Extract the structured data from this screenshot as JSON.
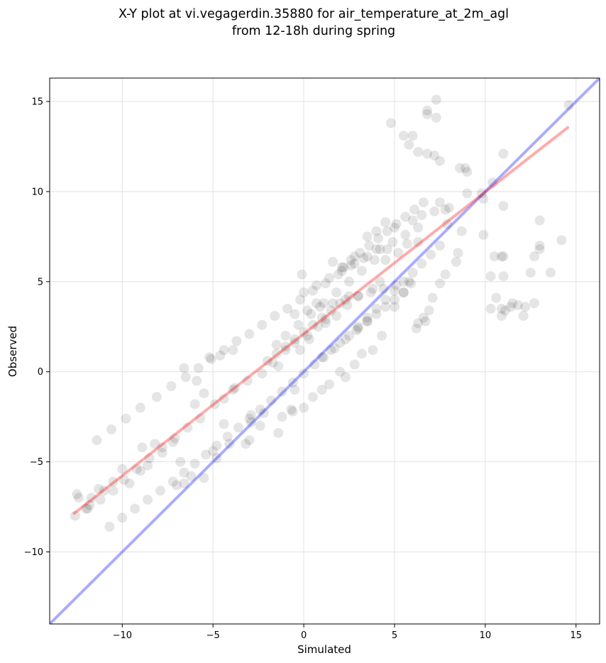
{
  "chart_data": {
    "type": "scatter",
    "title": "X-Y plot at vi.vegagerdin.35880 for air_temperature_at_2m_agl",
    "subtitle": "from 12-18h during spring",
    "xlabel": "Simulated",
    "ylabel": "Observed",
    "xlim": [
      -14.0,
      16.3
    ],
    "ylim": [
      -14.0,
      16.3
    ],
    "xticks": [
      -10,
      -5,
      0,
      5,
      10,
      15
    ],
    "yticks": [
      -10,
      -5,
      0,
      5,
      10,
      15
    ],
    "xtick_labels": [
      "−10",
      "−5",
      "0",
      "5",
      "10",
      "15"
    ],
    "ytick_labels": [
      "−10",
      "−5",
      "0",
      "5",
      "10",
      "15"
    ],
    "grid": true,
    "point_color": "#000000",
    "point_alpha": 0.1,
    "lines": [
      {
        "kind": "identity",
        "color": "#0000ff",
        "alpha": 0.33,
        "x": [
          -14.0,
          16.3
        ],
        "y": [
          -14.0,
          16.3
        ]
      },
      {
        "kind": "fit",
        "color": "#ff0000",
        "alpha": 0.33,
        "x": [
          -12.7,
          14.6
        ],
        "y": [
          -7.9,
          13.6
        ]
      }
    ],
    "points": {
      "x": [
        14.6,
        7.3,
        7.3,
        6.8,
        6.8,
        4.8,
        5.5,
        6.0,
        6.3,
        5.8,
        6.8,
        7.5,
        7.2,
        8.6,
        8.9,
        9.0,
        11.0,
        10.4,
        9.8,
        13.0,
        13.0,
        13.0,
        12.7,
        11.0,
        10.9,
        10.5,
        10.3,
        10.6,
        10.3,
        10.9,
        11.5,
        11.8,
        12.2,
        12.7,
        12.1,
        11.4,
        11.1,
        10.9,
        11.0,
        12.5,
        13.6,
        14.2,
        9.9,
        9.9,
        11.0,
        9.0,
        8.7,
        8.5,
        8.4,
        7.8,
        7.5,
        7.1,
        6.6,
        7.9,
        7.5,
        8.0,
        6.2,
        6.7,
        6.9,
        6.3,
        -12.6,
        -12.4,
        -12.0,
        -12.5,
        -11.8,
        -11.3,
        -11.7,
        -11.0,
        -10.5,
        -10.0,
        -9.6,
        -9.0,
        -8.6,
        -8.9,
        -8.2,
        -7.8,
        -7.2,
        -6.8,
        -6.6,
        -7.0,
        -6.2,
        -5.5,
        -5.0,
        -4.8,
        -4.1,
        -4.4,
        -3.2,
        -3.0,
        -2.9,
        -2.2,
        -1.2,
        -0.5,
        -0.6,
        -0.7,
        -2.9,
        -2.4,
        -1.4,
        0.0,
        0.5,
        1.0,
        1.4,
        2.3,
        2.0,
        2.8,
        3.2,
        3.8,
        4.3,
        -6.6,
        -5.9,
        -5.2,
        -4.6,
        -3.9,
        -5.5,
        -6.0,
        -3.8,
        -1.4,
        -0.2,
        0.3,
        1.2,
        0.7,
        -0.1,
        1.6,
        2.1,
        2.8,
        3.5,
        4.0,
        4.5,
        5.0,
        6.0,
        6.5,
        7.2,
        7.8,
        4.5,
        5.2,
        5.7,
        6.3,
        4.2,
        3.8,
        3.0,
        2.4,
        1.8,
        1.2,
        0.8,
        0.2,
        -0.5,
        -1.0,
        -1.7,
        -2.3,
        -3.1,
        -3.9,
        -4.4,
        -4.9,
        -5.7,
        -6.4,
        -7.1,
        -7.8,
        -8.5,
        -9.2,
        -9.9,
        -10.5,
        -11.2,
        -11.9,
        5.0,
        5.5,
        5.9,
        3.5,
        2.9,
        2.3,
        1.7,
        1.1,
        0.6,
        0.0,
        -0.6,
        -1.2,
        -1.8,
        -2.4,
        -3.0,
        -3.6,
        -4.2,
        -4.8,
        -5.4,
        -6.0,
        -6.6,
        -7.2,
        -7.9,
        -8.6,
        -9.3,
        -10.0,
        -10.7,
        4.0,
        3.3,
        2.6,
        1.9,
        1.2,
        0.5,
        -0.2,
        -0.9,
        -1.6,
        -2.3,
        -3.0,
        -3.7,
        -4.4,
        -5.1,
        -5.8,
        -6.5,
        -7.3,
        -8.1,
        -9.0,
        -9.8,
        -10.6,
        -11.4,
        2.5,
        2.0,
        1.5,
        1.0,
        0.5,
        0.0,
        -0.5,
        -1.0,
        -1.5,
        -2.0,
        3.0,
        3.5,
        4.0,
        4.5,
        5.0,
        5.5,
        6.0,
        6.5,
        7.0,
        7.5,
        2.2,
        2.6,
        3.1,
        3.6,
        4.1,
        4.6,
        5.1,
        5.6,
        6.1,
        6.6,
        -1.5,
        -1.0,
        -0.3,
        0.4,
        1.1,
        1.8,
        2.5,
        3.2,
        3.9,
        4.6,
        0.0,
        0.7,
        1.4,
        2.1,
        2.8,
        3.5,
        4.2,
        4.9,
        5.6,
        6.3,
        1.0,
        1.5,
        2.0,
        2.5,
        3.0,
        3.5,
        4.0,
        4.5,
        5.0,
        5.5,
        -0.5,
        0.2,
        0.9,
        1.6,
        2.3,
        3.0,
        3.7,
        4.4,
        5.1,
        5.8
      ],
      "y": [
        14.8,
        15.1,
        14.1,
        14.5,
        14.3,
        13.8,
        13.1,
        13.1,
        12.2,
        12.6,
        12.1,
        11.7,
        12.0,
        11.3,
        11.3,
        11.1,
        12.1,
        10.5,
        9.9,
        8.4,
        7.0,
        6.8,
        6.4,
        6.4,
        6.4,
        6.4,
        5.3,
        4.1,
        3.5,
        3.5,
        3.8,
        3.7,
        3.6,
        3.8,
        3.1,
        3.6,
        3.4,
        3.1,
        5.3,
        5.5,
        5.5,
        7.3,
        7.6,
        9.6,
        9.2,
        9.9,
        7.8,
        6.6,
        6.1,
        5.4,
        4.9,
        4.1,
        3.0,
        8.2,
        9.4,
        9.1,
        2.4,
        2.8,
        3.4,
        2.7,
        -8.0,
        -7.0,
        -7.6,
        -6.8,
        -7.4,
        -6.5,
        -7.0,
        -6.6,
        -6.1,
        -5.4,
        -6.2,
        -5.5,
        -5.2,
        -4.2,
        -4.0,
        -4.5,
        -3.9,
        -5.0,
        -6.2,
        -6.3,
        -5.8,
        -5.9,
        -4.4,
        -4.8,
        -4.0,
        -2.9,
        -4.0,
        -3.8,
        -2.8,
        -2.3,
        -2.5,
        -1.0,
        -2.2,
        -2.1,
        -2.4,
        -3.0,
        -3.4,
        -2.0,
        -1.4,
        -1.0,
        -0.7,
        -0.3,
        0.0,
        0.4,
        1.0,
        1.2,
        2.0,
        0.2,
        -0.5,
        0.8,
        0.9,
        1.2,
        -1.2,
        -1.8,
        -0.9,
        0.3,
        1.2,
        1.8,
        2.9,
        3.8,
        5.4,
        6.1,
        5.8,
        6.4,
        7.5,
        7.8,
        8.3,
        8.0,
        8.4,
        8.7,
        8.9,
        9.0,
        6.2,
        6.6,
        7.1,
        7.2,
        5.0,
        4.6,
        4.2,
        3.7,
        3.1,
        2.7,
        2.5,
        2.0,
        1.6,
        1.2,
        0.5,
        -0.1,
        -0.5,
        -1.0,
        -1.5,
        -1.8,
        -2.6,
        -3.1,
        -3.7,
        -4.2,
        -4.8,
        -5.4,
        -6.0,
        -6.6,
        -7.1,
        -7.6,
        3.6,
        4.4,
        4.9,
        2.8,
        2.3,
        1.8,
        1.3,
        0.8,
        0.4,
        -0.1,
        -0.6,
        -1.1,
        -1.6,
        -2.1,
        -2.6,
        -3.1,
        -3.6,
        -4.1,
        -4.6,
        -5.1,
        -5.6,
        -6.1,
        -6.6,
        -7.1,
        -7.6,
        -8.1,
        -8.6,
        6.8,
        6.3,
        5.9,
        5.4,
        4.9,
        4.5,
        4.0,
        3.5,
        3.1,
        2.6,
        2.1,
        1.7,
        1.2,
        0.7,
        0.2,
        -0.3,
        -0.8,
        -1.4,
        -2.0,
        -2.6,
        -3.2,
        -3.8,
        4.2,
        3.8,
        3.4,
        3.0,
        2.6,
        2.2,
        1.8,
        1.4,
        1.0,
        0.6,
        2.5,
        3.0,
        3.5,
        4.0,
        4.5,
        5.0,
        5.5,
        6.0,
        6.5,
        7.0,
        5.8,
        6.2,
        6.6,
        7.0,
        7.4,
        7.8,
        8.2,
        8.6,
        9.0,
        9.4,
        1.5,
        2.0,
        2.6,
        3.2,
        3.8,
        4.4,
        5.0,
        5.6,
        6.2,
        6.8,
        4.4,
        4.8,
        5.2,
        5.6,
        6.0,
        6.4,
        6.8,
        7.2,
        7.6,
        8.0,
        0.8,
        1.2,
        1.6,
        2.0,
        2.4,
        2.8,
        3.2,
        3.6,
        4.0,
        4.4,
        3.2,
        3.4,
        3.6,
        3.8,
        4.0,
        4.2,
        4.4,
        4.6,
        4.8,
        5.0
      ]
    }
  }
}
